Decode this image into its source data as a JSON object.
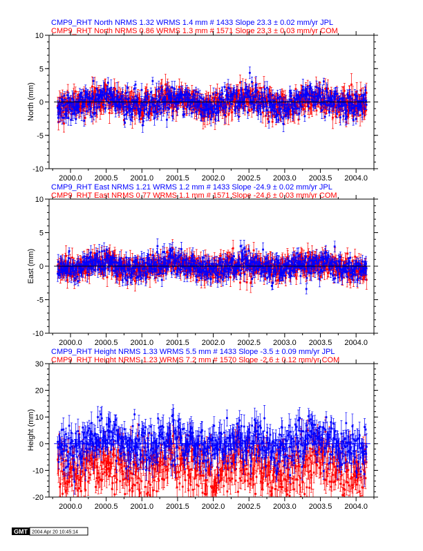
{
  "colors": {
    "jpl": "#0000ff",
    "com": "#ff0000",
    "axis": "#000000"
  },
  "panels": [
    {
      "ylabel": "North (mm)",
      "ylim": [
        -10,
        10
      ],
      "yticks": [
        -10,
        -5,
        0,
        5,
        10
      ],
      "header_jpl": "CMP9_RHT North NRMS 1.32 WRMS  1.4 mm # 1433 Slope   23.3 ±  0.02 mm/yr JPL",
      "header_com": "CMP9_RHT North NRMS 0.86 WRMS  1.3 mm # 1571 Slope   23.3 ±  0.03 mm/yr COM",
      "jpl": {
        "wrms": 1.4,
        "err": 0.9,
        "n": 1433
      },
      "com": {
        "wrms": 1.3,
        "err": 1.2,
        "n": 1571
      },
      "seasonal": 0.6,
      "zero_color": "#000000"
    },
    {
      "ylabel": "East (mm)",
      "ylim": [
        -10,
        10
      ],
      "yticks": [
        -10,
        -5,
        0,
        5,
        10
      ],
      "header_jpl": "CMP9_RHT East NRMS 1.21 WRMS  1.2 mm # 1433 Slope  -24.9 ±  0.02 mm/yr JPL",
      "header_com": "CMP9_RHT East NRMS 0.77 WRMS  1.1 mm # 1571 Slope  -24.6 ±  0.03 mm/yr COM",
      "jpl": {
        "wrms": 1.2,
        "err": 0.9,
        "n": 1433
      },
      "com": {
        "wrms": 1.1,
        "err": 1.1,
        "n": 1571
      },
      "seasonal": 0.5,
      "zero_color": "#000000"
    },
    {
      "ylabel": "Height (mm)",
      "ylim": [
        -20,
        30
      ],
      "yticks": [
        -20,
        -10,
        0,
        10,
        20,
        30
      ],
      "header_jpl": "CMP9_RHT Height NRMS 1.33 WRMS  5.5 mm # 1433 Slope   -3.5 ±  0.09 mm/yr JPL",
      "header_com": "CMP9_RHT Height NRMS 1.23 WRMS  7.2 mm # 1570 Slope   -2.6 ±  0.12 mm/yr COM",
      "jpl": {
        "wrms": 5.5,
        "err": 3.5,
        "n": 1433
      },
      "com": {
        "wrms": 7.2,
        "err": 4.0,
        "n": 1570,
        "offset": -9
      },
      "seasonal": 2.0,
      "zero_color": "#0000ff"
    }
  ],
  "chart_data": {
    "type": "scatter",
    "xlim": [
      1999.7,
      2004.25
    ],
    "xticks": [
      2000.0,
      2000.5,
      2001.0,
      2001.5,
      2002.0,
      2002.5,
      2003.0,
      2003.5,
      2004.0
    ],
    "xticklabels": [
      "2000.0",
      "2000.5",
      "2001.0",
      "2001.5",
      "2002.0",
      "2002.5",
      "2003.0",
      "2003.5",
      "2004.0"
    ],
    "time_range": [
      1999.82,
      2004.15
    ],
    "series": [
      {
        "name": "JPL",
        "color": "#0000ff"
      },
      {
        "name": "COM",
        "color": "#ff0000"
      }
    ]
  },
  "footer": {
    "logo": "GMT",
    "timestamp": "2004 Apr 20 10:45:14"
  }
}
